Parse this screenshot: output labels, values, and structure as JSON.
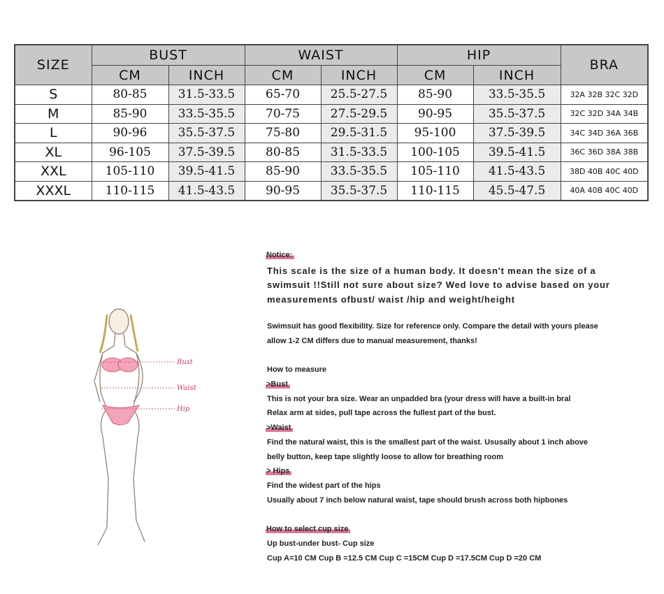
{
  "table": {
    "headers": {
      "size": "SIZE",
      "bust": "BUST",
      "waist": "WAIST",
      "hip": "HIP",
      "bra": "BRA",
      "cm": "CM",
      "inch": "INCH"
    },
    "rows": [
      {
        "size": "S",
        "bust_cm": "80-85",
        "bust_inch": "31.5-33.5",
        "waist_cm": "65-70",
        "waist_inch": "25.5-27.5",
        "hip_cm": "85-90",
        "hip_inch": "33.5-35.5",
        "bra": "32A 32B 32C 32D"
      },
      {
        "size": "M",
        "bust_cm": "85-90",
        "bust_inch": "33.5-35.5",
        "waist_cm": "70-75",
        "waist_inch": "27.5-29.5",
        "hip_cm": "90-95",
        "hip_inch": "35.5-37.5",
        "bra": "32C 32D 34A 34B"
      },
      {
        "size": "L",
        "bust_cm": "90-96",
        "bust_inch": "35.5-37.5",
        "waist_cm": "75-80",
        "waist_inch": "29.5-31.5",
        "hip_cm": "95-100",
        "hip_inch": "37.5-39.5",
        "bra": "34C 34D 36A 36B"
      },
      {
        "size": "XL",
        "bust_cm": "96-105",
        "bust_inch": "37.5-39.5",
        "waist_cm": "80-85",
        "waist_inch": "31.5-33.5",
        "hip_cm": "100-105",
        "hip_inch": "39.5-41.5",
        "bra": "36C 36D 38A 38B"
      },
      {
        "size": "XXL",
        "bust_cm": "105-110",
        "bust_inch": "39.5-41.5",
        "waist_cm": "85-90",
        "waist_inch": "33.5-35.5",
        "hip_cm": "105-110",
        "hip_inch": "41.5-43.5",
        "bra": "38D 40B 40C 40D"
      },
      {
        "size": "XXXL",
        "bust_cm": "110-115",
        "bust_inch": "41.5-43.5",
        "waist_cm": "90-95",
        "waist_inch": "35.5-37.5",
        "hip_cm": "110-115",
        "hip_inch": "45.5-47.5",
        "bra": "40A 40B 40C 40D"
      }
    ]
  },
  "figure": {
    "bust": "Bust",
    "waist": "Waist",
    "hip": "Hip",
    "highlight_color": "#e0809f"
  },
  "notes": {
    "notice_title": "Notice:",
    "notice_lines": [
      "This scale is the size of a human body. It doesn't mean the size of a",
      "swimsuit !!Still not sure about size? Wed love to advise based on your",
      "measurements ofbust/ waist /hip and weight/height"
    ],
    "flex_lines": [
      "Swimsuit has good flexibility. Size for reference only. Compare the detail with yours please",
      "allow 1-2 CM differs due to manual measurement, thanks!"
    ],
    "how_to": "How to measure",
    "bust_title": ">Bust",
    "bust_lines": [
      "This is not your bra size. Wear an unpadded bra (your dress will have a built-in bral",
      "Relax arm at sides, pull tape across the fullest part of the bust."
    ],
    "waist_title": ">Waist",
    "waist_lines": [
      "Find the natural waist, this is the smallest part of the waist. Ususally about 1 inch above",
      "belly button, keep tape slightly loose to allow for breathing room"
    ],
    "hips_title": "> Hips",
    "hips_lines": [
      "Find the widest part of the hips",
      "Usually about 7 inch below natural waist, tape should brush across both hipbones"
    ],
    "cup_title": "How to select cup size",
    "cup_lines": [
      "Up bust-under bust- Cup size",
      "Cup A=10 CM Cup B =12.5 CM Cup C =15CM Cup D =17.5CM Cup D =20 CM"
    ]
  }
}
